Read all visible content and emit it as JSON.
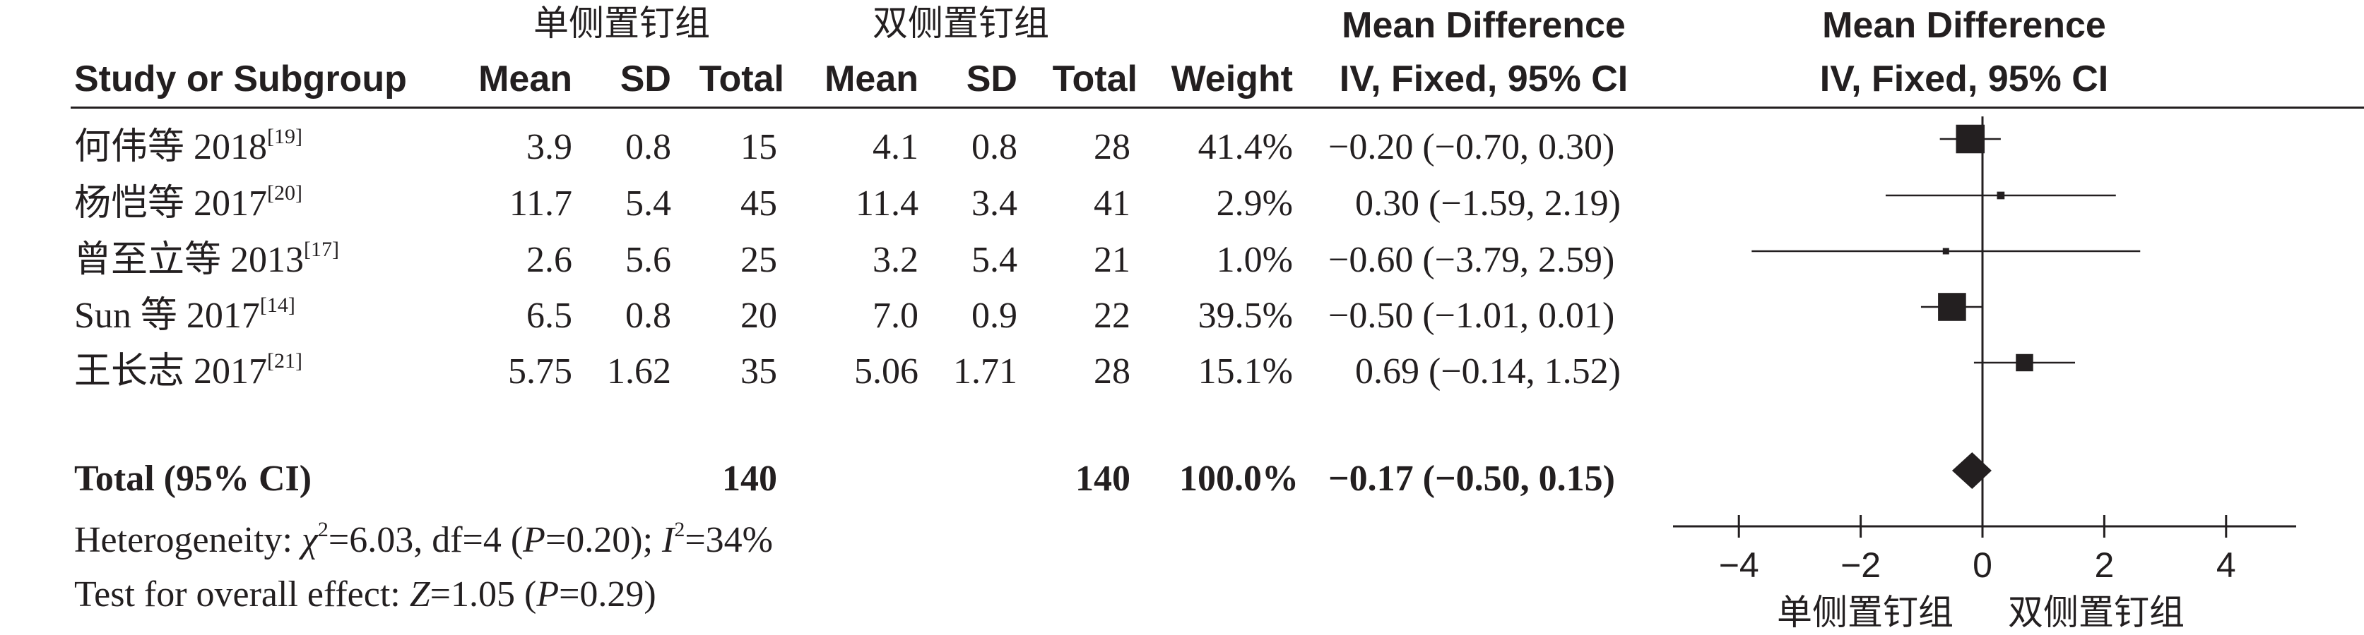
{
  "groups": {
    "experimental": "单侧置钉组",
    "control": "双侧置钉组"
  },
  "headers": {
    "study": "Study or Subgroup",
    "mean": "Mean",
    "sd": "SD",
    "total": "Total",
    "weight": "Weight",
    "md_title": "Mean Difference",
    "md_method": "IV, Fixed, 95% CI",
    "plot_title": "Mean Difference",
    "plot_method": "IV, Fixed, 95% CI"
  },
  "chart_data": {
    "type": "forest",
    "studies": [
      {
        "name": "何伟等 2018",
        "ref": "[19]",
        "e_mean": "3.9",
        "e_sd": "0.8",
        "e_total": "15",
        "c_mean": "4.1",
        "c_sd": "0.8",
        "c_total": "28",
        "weight": "41.4%",
        "ci_text": "−0.20 (−0.70, 0.30)",
        "md": -0.2,
        "lo": -0.7,
        "hi": 0.3,
        "w": 41.4
      },
      {
        "name": "杨恺等 2017",
        "ref": "[20]",
        "e_mean": "11.7",
        "e_sd": "5.4",
        "e_total": "45",
        "c_mean": "11.4",
        "c_sd": "3.4",
        "c_total": "41",
        "weight": "2.9%",
        "ci_text": "0.30 (−1.59, 2.19)",
        "md": 0.3,
        "lo": -1.59,
        "hi": 2.19,
        "w": 2.9
      },
      {
        "name": "曾至立等 2013",
        "ref": "[17]",
        "e_mean": "2.6",
        "e_sd": "5.6",
        "e_total": "25",
        "c_mean": "3.2",
        "c_sd": "5.4",
        "c_total": "21",
        "weight": "1.0%",
        "ci_text": "−0.60 (−3.79, 2.59)",
        "md": -0.6,
        "lo": -3.79,
        "hi": 2.59,
        "w": 1.0
      },
      {
        "name": "Sun 等 2017",
        "ref": "[14]",
        "e_mean": "6.5",
        "e_sd": "0.8",
        "e_total": "20",
        "c_mean": "7.0",
        "c_sd": "0.9",
        "c_total": "22",
        "weight": "39.5%",
        "ci_text": "−0.50 (−1.01, 0.01)",
        "md": -0.5,
        "lo": -1.01,
        "hi": 0.01,
        "w": 39.5
      },
      {
        "name": "王长志 2017",
        "ref": "[21]",
        "e_mean": "5.75",
        "e_sd": "1.62",
        "e_total": "35",
        "c_mean": "5.06",
        "c_sd": "1.71",
        "c_total": "28",
        "weight": "15.1%",
        "ci_text": "0.69 (−0.14, 1.52)",
        "md": 0.69,
        "lo": -0.14,
        "hi": 1.52,
        "w": 15.1
      }
    ],
    "total": {
      "label": "Total (95% CI)",
      "e_total": "140",
      "c_total": "140",
      "weight": "100.0%",
      "ci_text": "−0.17 (−0.50, 0.15)",
      "md": -0.17,
      "lo": -0.5,
      "hi": 0.15
    },
    "xlim": [
      -5,
      5
    ],
    "ticks": [
      -4,
      -2,
      0,
      2,
      4
    ],
    "tick_labels": [
      "−4",
      "−2",
      "0",
      "2",
      "4"
    ],
    "xlabel_left": "单侧置钉组",
    "xlabel_right": "双侧置钉组"
  },
  "footer": {
    "heterogeneity": {
      "prefix": "Heterogeneity: ",
      "chi": "χ",
      "chi_sup": "2",
      "mid": "=6.03, df=4 (",
      "p": "P",
      "p_val": "=0.20); ",
      "i": "I",
      "i_sup": "2",
      "i_val": "=34%"
    },
    "overall": {
      "prefix": "Test for overall effect: ",
      "z": "Z",
      "z_val": "=1.05 (",
      "p": "P",
      "p_val": "=0.29)"
    }
  }
}
